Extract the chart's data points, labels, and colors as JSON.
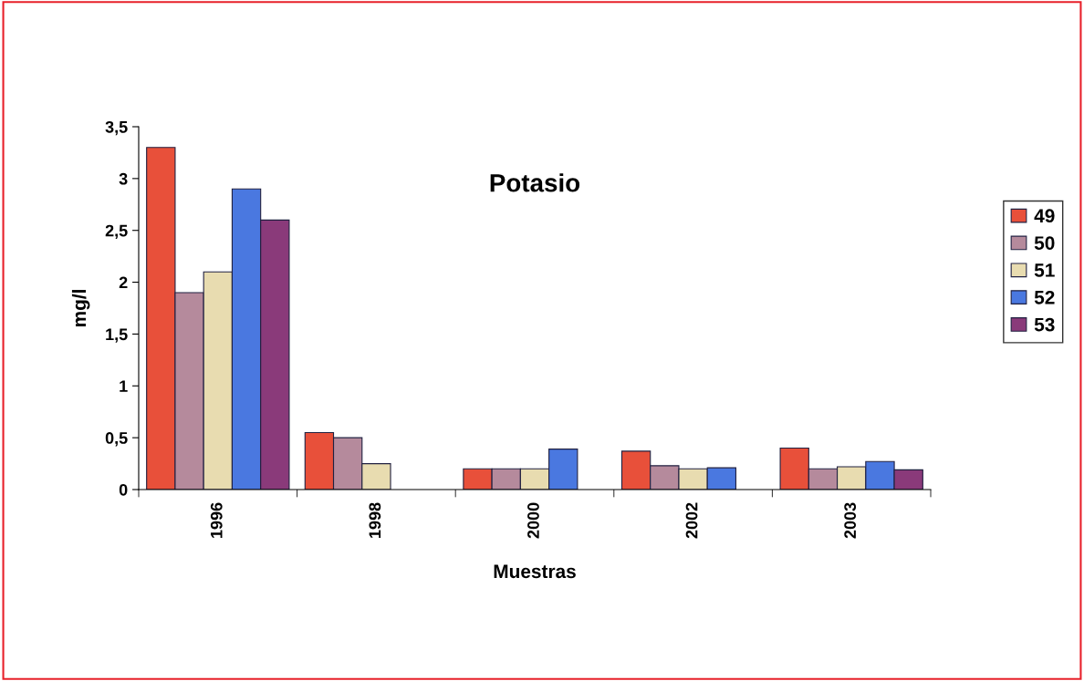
{
  "chart_data": {
    "type": "bar",
    "title": "Potasio",
    "xlabel": "Muestras",
    "ylabel": "mg/l",
    "categories": [
      "1996",
      "1998",
      "2000",
      "2002",
      "2003"
    ],
    "series": [
      {
        "name": "49",
        "color": "#e8503a",
        "values": [
          3.3,
          0.55,
          0.2,
          0.37,
          0.4
        ]
      },
      {
        "name": "50",
        "color": "#b58a9c",
        "values": [
          1.9,
          0.5,
          0.2,
          0.23,
          0.2
        ]
      },
      {
        "name": "51",
        "color": "#e8dcb0",
        "values": [
          2.1,
          0.25,
          0.2,
          0.2,
          0.22
        ]
      },
      {
        "name": "52",
        "color": "#4a78e0",
        "values": [
          2.9,
          null,
          0.39,
          0.21,
          0.27
        ]
      },
      {
        "name": "53",
        "color": "#8a3a7a",
        "values": [
          2.6,
          null,
          null,
          null,
          0.19
        ]
      }
    ],
    "ylim": [
      0,
      3.5
    ],
    "yticks": [
      0,
      {
        "value": 0.5,
        "label": "0,5"
      },
      1,
      {
        "value": 1.5,
        "label": "1,5"
      },
      2,
      {
        "value": 2.5,
        "label": "2,5"
      },
      3,
      {
        "value": 3.5,
        "label": "3,5"
      }
    ],
    "grid": false,
    "legend": "right"
  }
}
